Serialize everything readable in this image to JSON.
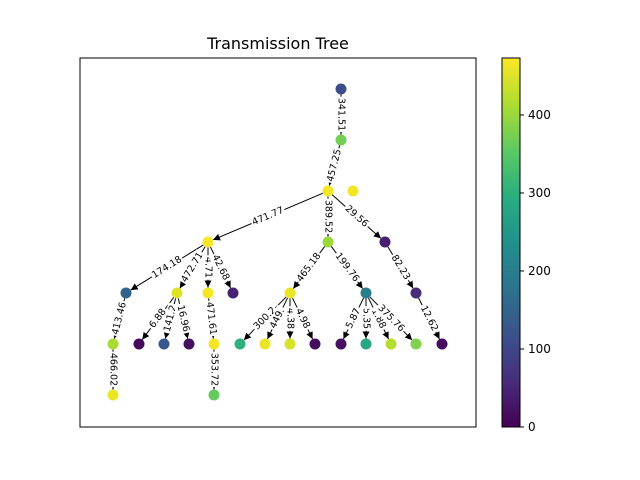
{
  "title": "Transmission Tree",
  "colorbar": {
    "min": 0,
    "max": 473,
    "ticks": [
      {
        "value": 0,
        "label": "0"
      },
      {
        "value": 100,
        "label": "100"
      },
      {
        "value": 200,
        "label": "200"
      },
      {
        "value": 300,
        "label": "300"
      },
      {
        "value": 400,
        "label": "400"
      }
    ]
  },
  "nodes": [
    {
      "id": "n1",
      "value": 110
    },
    {
      "id": "n2",
      "value": 370
    },
    {
      "id": "n3",
      "value": 465
    },
    {
      "id": "n4",
      "value": 465
    },
    {
      "id": "n5",
      "value": 470
    },
    {
      "id": "n6",
      "value": 400
    },
    {
      "id": "n7",
      "value": 40
    },
    {
      "id": "n8",
      "value": 150
    },
    {
      "id": "n9",
      "value": 450
    },
    {
      "id": "n10",
      "value": 465
    },
    {
      "id": "n11",
      "value": 45
    },
    {
      "id": "n12",
      "value": 460
    },
    {
      "id": "n13",
      "value": 200
    },
    {
      "id": "n14",
      "value": 60
    },
    {
      "id": "n15",
      "value": 410
    },
    {
      "id": "n16",
      "value": 10
    },
    {
      "id": "n17",
      "value": 130
    },
    {
      "id": "n18",
      "value": 20
    },
    {
      "id": "n19",
      "value": 465
    },
    {
      "id": "n20",
      "value": 300
    },
    {
      "id": "n21",
      "value": 460
    },
    {
      "id": "n22",
      "value": 445
    },
    {
      "id": "n23",
      "value": 15
    },
    {
      "id": "n24",
      "value": 20
    },
    {
      "id": "n25",
      "value": 280
    },
    {
      "id": "n26",
      "value": 420
    },
    {
      "id": "n27",
      "value": 380
    },
    {
      "id": "n28",
      "value": 15
    },
    {
      "id": "n29",
      "value": 460
    },
    {
      "id": "n30",
      "value": 360
    }
  ],
  "edges": [
    {
      "from": "n1",
      "to": "n2",
      "label": "341.51"
    },
    {
      "from": "n2",
      "to": "n3",
      "label": "457.25"
    },
    {
      "from": "n3",
      "to": "n5",
      "label": "471.77"
    },
    {
      "from": "n3",
      "to": "n6",
      "label": "389.52"
    },
    {
      "from": "n3",
      "to": "n7",
      "label": "29.56"
    },
    {
      "from": "n5",
      "to": "n8",
      "label": "174.18"
    },
    {
      "from": "n5",
      "to": "n9",
      "label": "472.71"
    },
    {
      "from": "n5",
      "to": "n10",
      "label": "4.71"
    },
    {
      "from": "n5",
      "to": "n11",
      "label": "42.68"
    },
    {
      "from": "n6",
      "to": "n12",
      "label": "465.18"
    },
    {
      "from": "n6",
      "to": "n13",
      "label": "199.76"
    },
    {
      "from": "n7",
      "to": "n14",
      "label": "82.23"
    },
    {
      "from": "n8",
      "to": "n15",
      "label": "413.46"
    },
    {
      "from": "n9",
      "to": "n16",
      "label": "6.88"
    },
    {
      "from": "n9",
      "to": "n17",
      "label": "141.2"
    },
    {
      "from": "n9",
      "to": "n18",
      "label": "16.96"
    },
    {
      "from": "n10",
      "to": "n19",
      "label": "471.61"
    },
    {
      "from": "n12",
      "to": "n20",
      "label": "300.2"
    },
    {
      "from": "n12",
      "to": "n21",
      "label": "449."
    },
    {
      "from": "n12",
      "to": "n22",
      "label": "4.38"
    },
    {
      "from": "n12",
      "to": "n23",
      "label": "4.98"
    },
    {
      "from": "n13",
      "to": "n24",
      "label": "5.87"
    },
    {
      "from": "n13",
      "to": "n25",
      "label": "5.35"
    },
    {
      "from": "n13",
      "to": "n26",
      "label": "1.88"
    },
    {
      "from": "n13",
      "to": "n27",
      "label": "375.76"
    },
    {
      "from": "n14",
      "to": "n28",
      "label": "12.62"
    },
    {
      "from": "n15",
      "to": "n29",
      "label": "466.02"
    },
    {
      "from": "n19",
      "to": "n30",
      "label": "353.72"
    }
  ]
}
